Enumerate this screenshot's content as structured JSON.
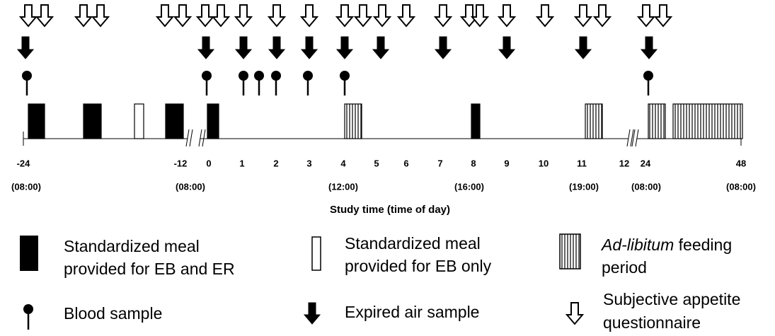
{
  "timeline": {
    "hour_labels": [
      "-24",
      "-12",
      "0",
      "1",
      "2",
      "3",
      "4",
      "5",
      "6",
      "7",
      "8",
      "9",
      "10",
      "11",
      "12",
      "24",
      "48"
    ],
    "clock_labels": [
      "(08:00)",
      "(08:00)",
      "(12:00)",
      "(16:00)",
      "(19:00)",
      "(08:00)",
      "(08:00)"
    ],
    "axis_title": "Study time (time of day)"
  },
  "legend": {
    "meal_eb_er": [
      "Standardized meal",
      "provided for EB and ER"
    ],
    "meal_eb": [
      "Standardized meal",
      "provided for EB only"
    ],
    "ad_libitum": {
      "italic": "Ad-libitum",
      "text": " feeding",
      "line2": "period"
    },
    "blood": "Blood sample",
    "expired_air": "Expired air sample",
    "appetite": [
      "Subjective appetite",
      "questionnaire"
    ]
  }
}
